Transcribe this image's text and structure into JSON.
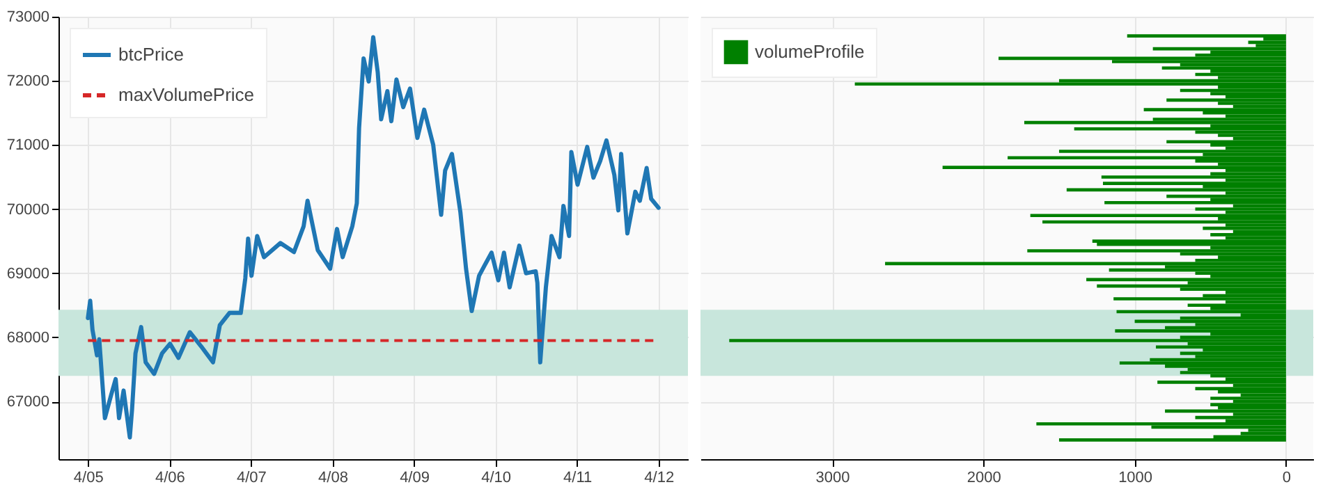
{
  "chart_data": [
    {
      "type": "line",
      "x": [
        "--04-05T00:00",
        "--04-05T00:40",
        "--04-05T01:20",
        "--04-05T02:40",
        "--04-05T03:20",
        "--04-05T05:00",
        "--04-05T06:50",
        "--04-05T08:10",
        "--04-05T09:10",
        "--04-05T10:30",
        "--04-05T12:20",
        "--04-05T13:00",
        "--04-05T14:00",
        "--04-05T15:40",
        "--04-05T17:00",
        "--04-05T19:30",
        "--04-05T21:50",
        "--04-06T00:10",
        "--04-06T02:40",
        "--04-06T06:00",
        "--04-06T09:20",
        "--04-06T12:50",
        "--04-06T14:50",
        "--04-06T17:40",
        "--04-06T21:00",
        "--04-06T22:20",
        "--04-06T23:10",
        "--04-07T00:10",
        "--04-07T01:50",
        "--04-07T03:50",
        "--04-07T08:40",
        "--04-07T12:40",
        "--04-07T15:30",
        "--04-07T16:40",
        "--04-07T19:40",
        "--04-07T23:20",
        "--04-08T00:00",
        "--04-08T01:20",
        "--04-08T03:00",
        "--04-08T05:50",
        "--04-08T07:10",
        "--04-08T07:50",
        "--04-08T09:10",
        "--04-08T10:40",
        "--04-08T12:00",
        "--04-08T13:20",
        "--04-08T14:20",
        "--04-08T16:10",
        "--04-08T17:20",
        "--04-08T18:50",
        "--04-08T20:50",
        "--04-08T22:50",
        "--04-09T01:00",
        "--04-09T03:00",
        "--04-09T05:40",
        "--04-09T08:00",
        "--04-09T09:10",
        "--04-09T11:10",
        "--04-09T13:40",
        "--04-09T15:20",
        "--04-09T17:00",
        "--04-09T19:10",
        "--04-09T20:40",
        "--04-09T22:50",
        "--04-10T00:50",
        "--04-10T02:30",
        "--04-10T04:10",
        "--04-10T07:00",
        "--04-10T09:00",
        "--04-10T11:50",
        "--04-10T12:20",
        "--04-10T13:10",
        "--04-10T14:50",
        "--04-10T16:30",
        "--04-10T18:50",
        "--04-10T20:00",
        "--04-10T21:40",
        "--04-10T22:20",
        "--04-11T00:10",
        "--04-11T03:00",
        "--04-11T04:50",
        "--04-11T06:50",
        "--04-11T08:40",
        "--04-11T11:00",
        "--04-11T12:10",
        "--04-11T13:00",
        "--04-11T14:50",
        "--04-11T17:10",
        "--04-11T18:30",
        "--04-11T20:30",
        "--04-11T21:50",
        "--04-12T00:00"
      ],
      "series": [
        {
          "name": "btcPrice",
          "color": "#1f77b4",
          "values": [
            68300,
            68570,
            68120,
            67720,
            67970,
            66740,
            67100,
            67350,
            66740,
            67170,
            66440,
            66880,
            67750,
            68160,
            67610,
            67430,
            67750,
            67900,
            67680,
            68080,
            67860,
            67610,
            68190,
            68380,
            68380,
            68920,
            69540,
            68960,
            69580,
            69250,
            69470,
            69330,
            69730,
            70130,
            69360,
            69070,
            69290,
            69690,
            69250,
            69730,
            70090,
            71260,
            72350,
            71990,
            72680,
            72130,
            71400,
            71840,
            71370,
            72020,
            71590,
            71880,
            71110,
            71550,
            71000,
            69910,
            70600,
            70860,
            69950,
            69070,
            68410,
            68960,
            69110,
            69320,
            68890,
            69320,
            68780,
            69430,
            69000,
            69030,
            68850,
            67610,
            68780,
            69580,
            69250,
            70050,
            69580,
            70890,
            70380,
            70970,
            70490,
            70750,
            71070,
            70530,
            69980,
            70860,
            69620,
            70270,
            70130,
            70640,
            70160,
            70020
          ]
        }
      ],
      "ref_lines": [
        {
          "axis": "y",
          "value": 67950,
          "label": "maxVolumePrice",
          "color": "#d62728",
          "line_style": "dashed"
        }
      ],
      "bands": [
        {
          "axis": "y",
          "from": 67400,
          "to": 68430,
          "color": "#c8e6dc"
        }
      ],
      "xlim": [
        "--04-04T15:20",
        "--04-12T08:40"
      ],
      "xticks": [
        {
          "value": "--04-05",
          "label": "4/05"
        },
        {
          "value": "--04-06",
          "label": "4/06"
        },
        {
          "value": "--04-07",
          "label": "4/07"
        },
        {
          "value": "--04-08",
          "label": "4/08"
        },
        {
          "value": "--04-09",
          "label": "4/09"
        },
        {
          "value": "--04-10",
          "label": "4/10"
        },
        {
          "value": "--04-11",
          "label": "4/11"
        },
        {
          "value": "--04-12",
          "label": "4/12"
        }
      ],
      "ylim": [
        66100,
        73000
      ],
      "yticks": [
        67000,
        68000,
        69000,
        70000,
        71000,
        72000,
        73000
      ],
      "grid": true,
      "legend": "top left",
      "line_style": "solid"
    },
    {
      "type": "bar",
      "orientation": "horizontal",
      "x": [
        66400,
        66450,
        66500,
        66550,
        66600,
        66650,
        66700,
        66750,
        66800,
        66850,
        66900,
        66950,
        67000,
        67050,
        67100,
        67150,
        67200,
        67250,
        67300,
        67350,
        67400,
        67450,
        67500,
        67550,
        67600,
        67650,
        67700,
        67750,
        67800,
        67850,
        67900,
        67950,
        68000,
        68050,
        68100,
        68150,
        68200,
        68250,
        68300,
        68350,
        68400,
        68450,
        68500,
        68550,
        68600,
        68650,
        68700,
        68750,
        68800,
        68850,
        68900,
        68950,
        69000,
        69050,
        69100,
        69150,
        69200,
        69250,
        69300,
        69350,
        69400,
        69450,
        69500,
        69550,
        69600,
        69650,
        69700,
        69750,
        69800,
        69850,
        69900,
        69950,
        70000,
        70050,
        70100,
        70150,
        70200,
        70250,
        70300,
        70350,
        70400,
        70450,
        70500,
        70550,
        70600,
        70650,
        70700,
        70750,
        70800,
        70850,
        70900,
        70950,
        71000,
        71050,
        71100,
        71150,
        71200,
        71250,
        71300,
        71350,
        71400,
        71450,
        71500,
        71550,
        71600,
        71650,
        71700,
        71750,
        71800,
        71850,
        71900,
        71950,
        72000,
        72050,
        72100,
        72150,
        72200,
        72250,
        72300,
        72350,
        72400,
        72450,
        72500,
        72550,
        72600,
        72650,
        72700
      ],
      "series": [
        {
          "name": "volumeProfile",
          "color": "#008000",
          "values": [
            1500,
            480,
            300,
            250,
            890,
            1650,
            400,
            600,
            350,
            800,
            450,
            500,
            350,
            500,
            300,
            450,
            600,
            350,
            850,
            400,
            500,
            700,
            650,
            800,
            1100,
            900,
            600,
            700,
            550,
            860,
            650,
            3680,
            700,
            500,
            1130,
            800,
            600,
            1000,
            700,
            300,
            1120,
            500,
            650,
            400,
            1140,
            550,
            400,
            700,
            1250,
            650,
            1320,
            500,
            600,
            1170,
            800,
            2650,
            600,
            450,
            700,
            1710,
            500,
            1250,
            1280,
            400,
            500,
            350,
            550,
            400,
            1610,
            450,
            1690,
            400,
            600,
            350,
            1200,
            500,
            790,
            400,
            1450,
            550,
            1210,
            400,
            1220,
            500,
            400,
            2270,
            450,
            600,
            1840,
            550,
            1500,
            400,
            500,
            790,
            350,
            450,
            600,
            1400,
            500,
            1730,
            880,
            400,
            550,
            940,
            350,
            450,
            790,
            400,
            500,
            700,
            450,
            2850,
            1500,
            450,
            600,
            500,
            820,
            700,
            1150,
            1900,
            600,
            500,
            880,
            200,
            250,
            150,
            1050
          ]
        }
      ],
      "bands": [
        {
          "axis": "y",
          "from": 67400,
          "to": 68430,
          "color": "#c8e6dc"
        }
      ],
      "xlim": [
        3870,
        -180
      ],
      "xticks": [
        3000,
        2000,
        1000,
        0
      ],
      "ylim": [
        66100,
        73000
      ],
      "yticks": [
        67000,
        68000,
        69000,
        70000,
        71000,
        72000,
        73000
      ],
      "tick_labels": "x",
      "grid": true,
      "legend": "top left"
    }
  ]
}
